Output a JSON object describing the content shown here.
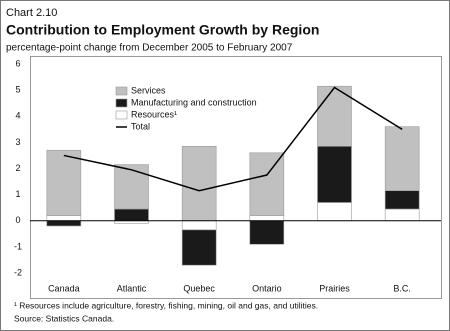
{
  "chart_data": {
    "type": "stacked-bar-line",
    "label": "Chart 2.10",
    "title": "Contribution to Employment Growth by Region",
    "subtitle": "percentage-point change from December 2005 to February 2007",
    "categories": [
      "Canada",
      "Atlantic",
      "Quebec",
      "Ontario",
      "Prairies",
      "B.C."
    ],
    "series": [
      {
        "name": "Services",
        "color": "#c0c0c0",
        "values": [
          2.5,
          1.7,
          2.85,
          2.4,
          2.3,
          2.45
        ]
      },
      {
        "name": "Manufacturing and construction",
        "color": "#1a1a1a",
        "values": [
          -0.2,
          0.45,
          -1.35,
          -0.9,
          2.15,
          0.7
        ]
      },
      {
        "name": "Resources¹",
        "color": "#ffffff",
        "values": [
          0.2,
          -0.1,
          -0.35,
          0.2,
          0.7,
          0.45
        ]
      }
    ],
    "line": {
      "name": "Total",
      "color": "#000000",
      "values": [
        2.5,
        1.95,
        1.15,
        1.75,
        5.1,
        3.5
      ]
    },
    "ylim": [
      -2,
      6
    ],
    "yticks": [
      -2,
      -1,
      0,
      1,
      2,
      3,
      4,
      5,
      6
    ],
    "legend": "top-left",
    "footnote": "¹ Resources include agriculture, forestry, fishing, mining, oil and gas, and utilities.",
    "source": "Source: Statistics Canada."
  }
}
